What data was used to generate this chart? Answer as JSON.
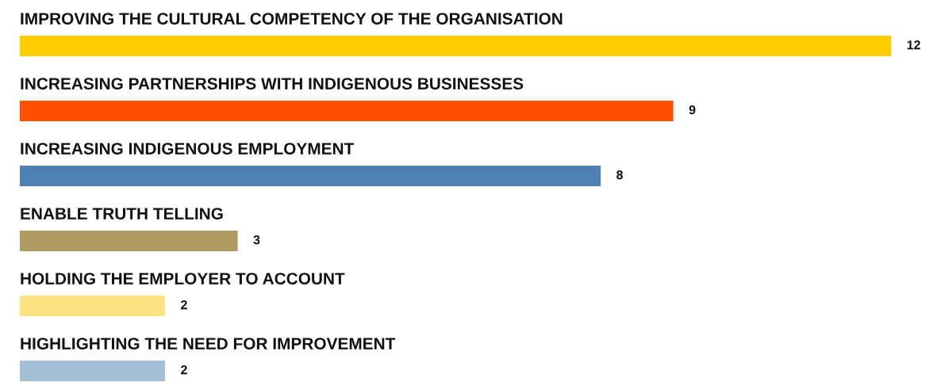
{
  "chart_data": {
    "type": "bar",
    "orientation": "horizontal",
    "data_labels": true,
    "categories": [
      "IMPROVING THE CULTURAL COMPETENCY OF THE ORGANISATION",
      "INCREASING PARTNERSHIPS WITH INDIGENOUS BUSINESSES",
      "INCREASING INDIGENOUS EMPLOYMENT",
      "ENABLE TRUTH TELLING",
      "HOLDING THE EMPLOYER TO ACCOUNT",
      "HIGHLIGHTING THE NEED FOR IMPROVEMENT"
    ],
    "values": [
      12,
      9,
      8,
      3,
      2,
      2
    ],
    "colors": [
      "#ffcc00",
      "#ff5000",
      "#4f81b4",
      "#ae9963",
      "#ffe380",
      "#a5bfd6"
    ]
  }
}
